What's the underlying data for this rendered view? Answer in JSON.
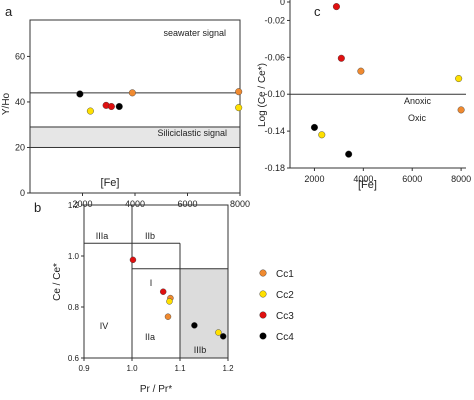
{
  "colors": {
    "Cc1": "#f08a30",
    "Cc2": "#ffe000",
    "Cc3": "#e01010",
    "Cc4": "#000000",
    "band": "#e6e6e6",
    "region": "#dcdcdc"
  },
  "chart_data": [
    {
      "id": "a",
      "type": "scatter",
      "panel_label": "a",
      "xlabel": "[Fe]",
      "ylabel": "Y/Ho",
      "xlim": [
        0,
        8000
      ],
      "ylim": [
        0,
        76
      ],
      "xticks": [
        "2000",
        "4000",
        "6000",
        "8000"
      ],
      "yticks": [
        "0",
        "20",
        "40",
        "60"
      ],
      "annotations": {
        "upper": "seawater signal",
        "band": "Siliciclastic signal"
      },
      "reference_line": 44,
      "band": [
        20,
        29
      ],
      "series": [
        {
          "name": "Cc1",
          "points": [
            [
              3900,
              44
            ],
            [
              7950,
              44.5
            ]
          ]
        },
        {
          "name": "Cc2",
          "points": [
            [
              2300,
              36
            ],
            [
              7950,
              37.5
            ]
          ]
        },
        {
          "name": "Cc3",
          "points": [
            [
              2900,
              38.5
            ],
            [
              3100,
              38
            ]
          ]
        },
        {
          "name": "Cc4",
          "points": [
            [
              1900,
              43.5
            ],
            [
              3400,
              38
            ]
          ]
        }
      ]
    },
    {
      "id": "c",
      "type": "scatter",
      "panel_label": "c",
      "xlabel": "[Fe]",
      "ylabel": "Log (Ce / Ce*)",
      "xlim": [
        1000,
        8200
      ],
      "ylim": [
        -0.18,
        0.0
      ],
      "xticks": [
        "2000",
        "4000",
        "6000",
        "8000"
      ],
      "yticks": [
        "-0.18",
        "-0.14",
        "-0.10",
        "-0.06",
        "-0.02",
        "0"
      ],
      "annotations": {
        "above": "Anoxic",
        "below": "Oxic"
      },
      "reference_line": -0.1,
      "series": [
        {
          "name": "Cc1",
          "points": [
            [
              3900,
              -0.075
            ],
            [
              8000,
              -0.117
            ]
          ]
        },
        {
          "name": "Cc2",
          "points": [
            [
              2300,
              -0.144
            ],
            [
              7900,
              -0.083
            ]
          ]
        },
        {
          "name": "Cc3",
          "points": [
            [
              2900,
              -0.005
            ],
            [
              3100,
              -0.061
            ]
          ]
        },
        {
          "name": "Cc4",
          "points": [
            [
              2000,
              -0.136
            ],
            [
              3400,
              -0.165
            ]
          ]
        }
      ]
    },
    {
      "id": "b",
      "type": "scatter",
      "panel_label": "b",
      "xlabel": "Pr / Pr*",
      "ylabel": "Ce / Ce*",
      "xlim": [
        0.9,
        1.2
      ],
      "ylim": [
        0.6,
        1.2
      ],
      "xticks": [
        "0.9",
        "1.0",
        "1.1",
        "1.2"
      ],
      "yticks": [
        "0.6",
        "0.8",
        "1.0",
        "1.2"
      ],
      "fields": [
        "IIIa",
        "IIb",
        "I",
        "IV",
        "IIa",
        "IIIb"
      ],
      "series": [
        {
          "name": "Cc1",
          "points": [
            [
              1.075,
              0.762
            ],
            [
              1.08,
              0.835
            ]
          ]
        },
        {
          "name": "Cc2",
          "points": [
            [
              1.078,
              0.822
            ],
            [
              1.18,
              0.7
            ]
          ]
        },
        {
          "name": "Cc3",
          "points": [
            [
              1.002,
              0.985
            ],
            [
              1.065,
              0.86
            ]
          ]
        },
        {
          "name": "Cc4",
          "points": [
            [
              1.13,
              0.728
            ],
            [
              1.19,
              0.685
            ]
          ]
        }
      ]
    }
  ],
  "legend": [
    {
      "name": "Cc1",
      "color": "#f08a30"
    },
    {
      "name": "Cc2",
      "color": "#ffe000"
    },
    {
      "name": "Cc3",
      "color": "#e01010"
    },
    {
      "name": "Cc4",
      "color": "#000000"
    }
  ]
}
